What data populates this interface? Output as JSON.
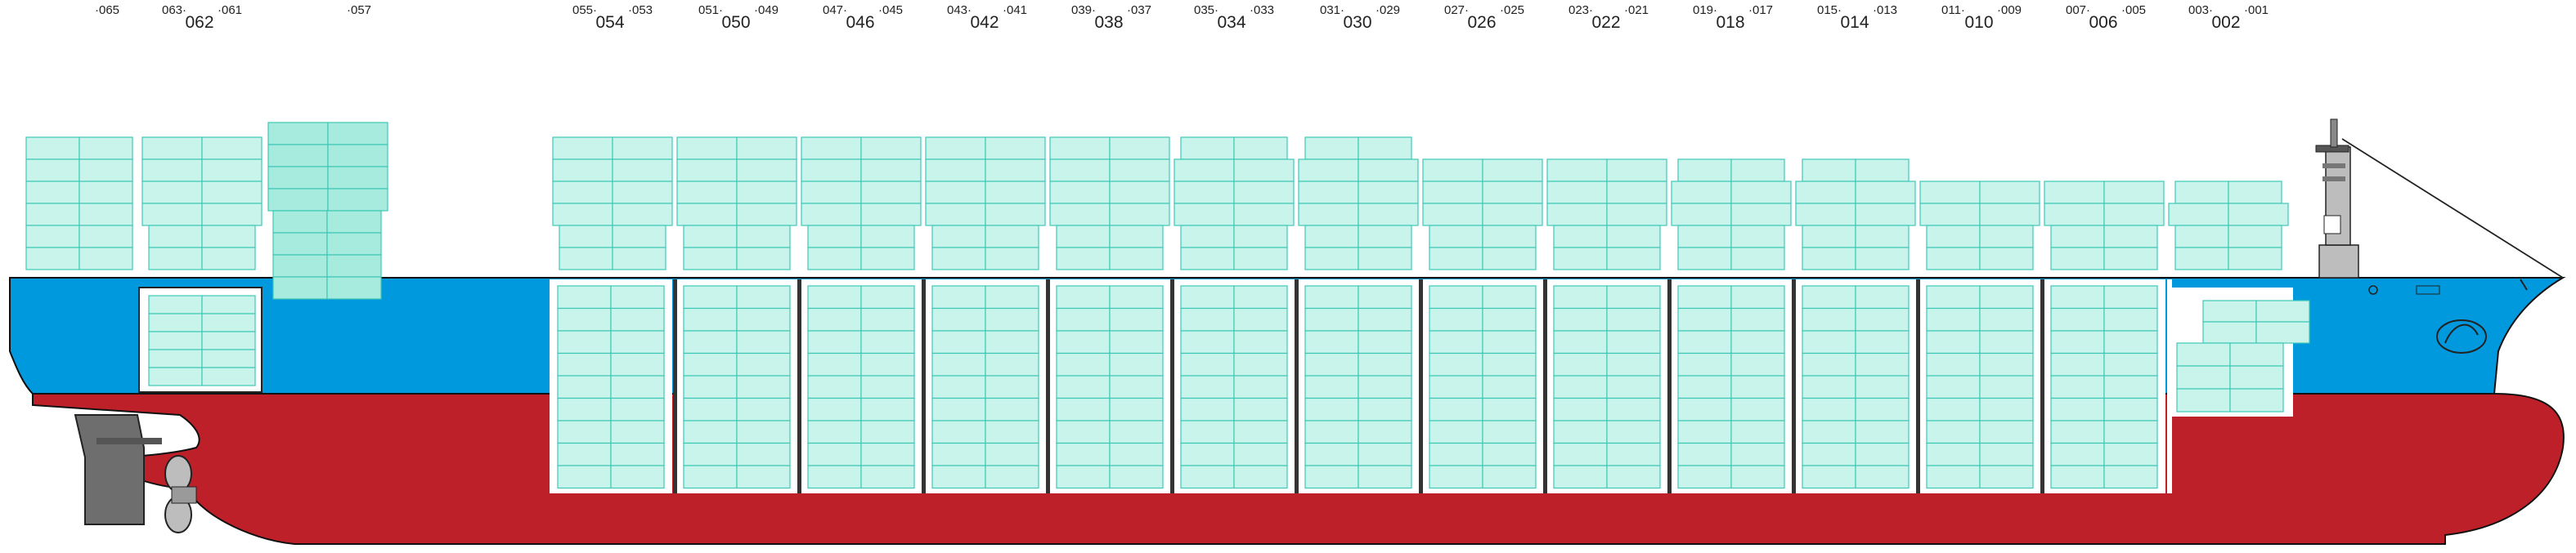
{
  "bays": [
    {
      "main": "062",
      "subs": [
        "·065",
        "063·",
        "·061"
      ]
    },
    {
      "main": "",
      "subs": [
        "·057"
      ]
    },
    {
      "main": "054",
      "subs": [
        "055·",
        "·053"
      ]
    },
    {
      "main": "050",
      "subs": [
        "051·",
        "·049"
      ]
    },
    {
      "main": "046",
      "subs": [
        "047·",
        "·045"
      ]
    },
    {
      "main": "042",
      "subs": [
        "043·",
        "·041"
      ]
    },
    {
      "main": "038",
      "subs": [
        "039·",
        "·037"
      ]
    },
    {
      "main": "034",
      "subs": [
        "035·",
        "·033"
      ]
    },
    {
      "main": "030",
      "subs": [
        "031·",
        "·029"
      ]
    },
    {
      "main": "026",
      "subs": [
        "027·",
        "·025"
      ]
    },
    {
      "main": "022",
      "subs": [
        "023·",
        "·021"
      ]
    },
    {
      "main": "018",
      "subs": [
        "019·",
        "·017"
      ]
    },
    {
      "main": "014",
      "subs": [
        "015·",
        "·013"
      ]
    },
    {
      "main": "010",
      "subs": [
        "011·",
        "·009"
      ]
    },
    {
      "main": "006",
      "subs": [
        "007·",
        "·005"
      ]
    },
    {
      "main": "002",
      "subs": [
        "003·",
        "·001"
      ]
    }
  ],
  "colors": {
    "hull_red": "#bd2029",
    "topside_blue": "#0099dd",
    "container_fill": "#c8f4ec",
    "container_fill_alt": "#a6ebdd",
    "container_stroke": "#3ec7b6",
    "hold_bulkhead": "#333333",
    "rudder": "#6e6e6e"
  },
  "icons": [
    "propeller-icon",
    "rudder-icon",
    "bridge-mast-icon",
    "bulbous-bow-icon"
  ]
}
